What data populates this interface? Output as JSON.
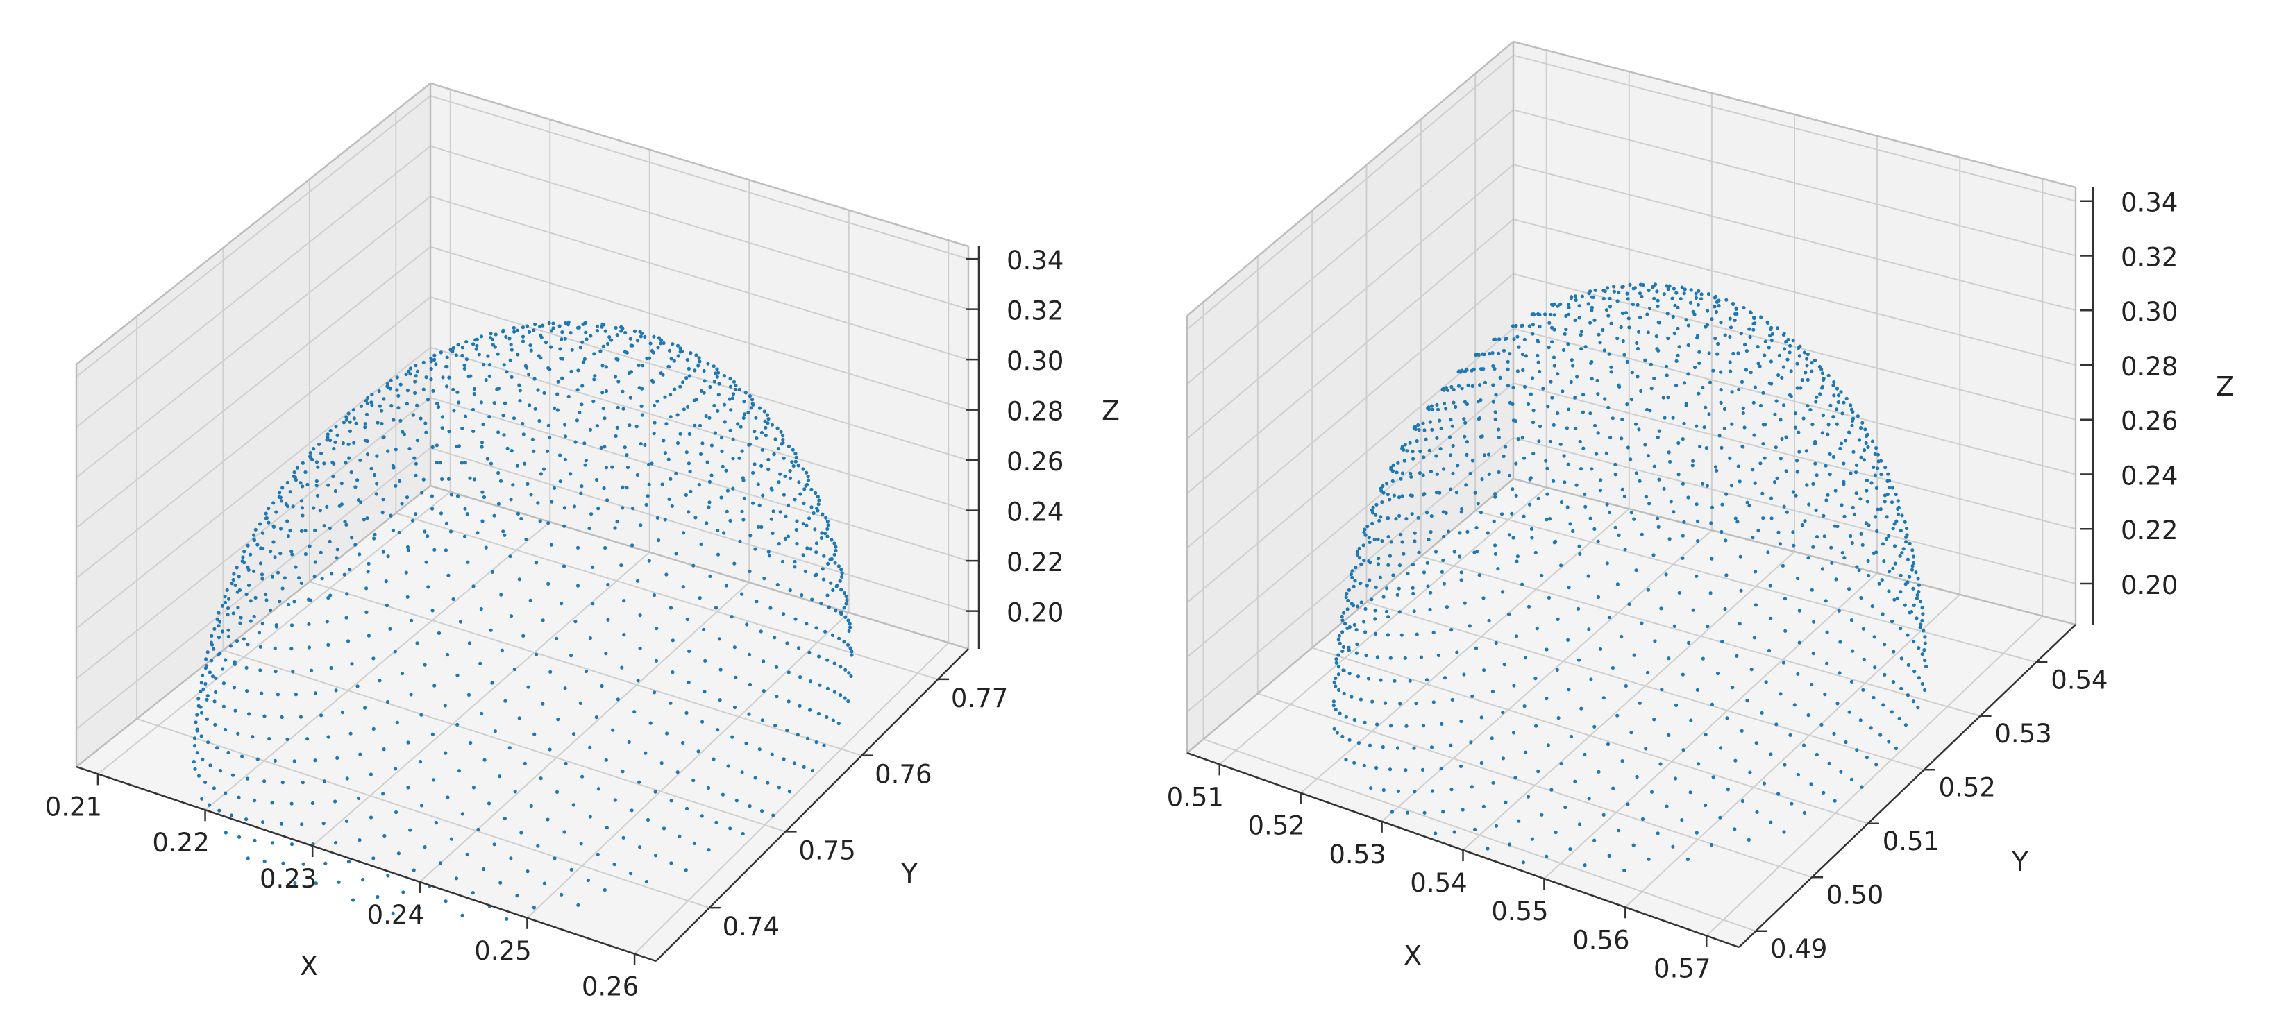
{
  "chart_data": [
    {
      "type": "scatter3d",
      "title": "",
      "xlabel": "X",
      "ylabel": "Y",
      "zlabel": "Z",
      "xticks": [
        "0.21",
        "0.22",
        "0.23",
        "0.24",
        "0.25",
        "0.26"
      ],
      "yticks": [
        "0.74",
        "0.75",
        "0.76",
        "0.77"
      ],
      "zticks": [
        "0.20",
        "0.22",
        "0.24",
        "0.26",
        "0.28",
        "0.30",
        "0.32",
        "0.34"
      ],
      "xlim": [
        0.208,
        0.262
      ],
      "ylim": [
        0.733,
        0.774
      ],
      "zlim": [
        0.185,
        0.345
      ],
      "grid": true,
      "marker_color": "#1f77b4",
      "description": "hemispherical point cloud",
      "center": [
        0.235,
        0.753,
        0.185
      ],
      "radius": 0.025,
      "top_z": 0.322
    },
    {
      "type": "scatter3d",
      "title": "",
      "xlabel": "X",
      "ylabel": "Y",
      "zlabel": "Z",
      "xticks": [
        "0.51",
        "0.52",
        "0.53",
        "0.54",
        "0.55",
        "0.56",
        "0.57"
      ],
      "yticks": [
        "0.49",
        "0.50",
        "0.51",
        "0.52",
        "0.53",
        "0.54"
      ],
      "zticks": [
        "0.20",
        "0.22",
        "0.24",
        "0.26",
        "0.28",
        "0.30",
        "0.32",
        "0.34"
      ],
      "xlim": [
        0.506,
        0.574
      ],
      "ylim": [
        0.487,
        0.547
      ],
      "zlim": [
        0.185,
        0.345
      ],
      "grid": true,
      "marker_color": "#1f77b4",
      "description": "hemispherical point cloud",
      "center": [
        0.54,
        0.517,
        0.185
      ],
      "radius": 0.03,
      "top_z": 0.325
    }
  ]
}
